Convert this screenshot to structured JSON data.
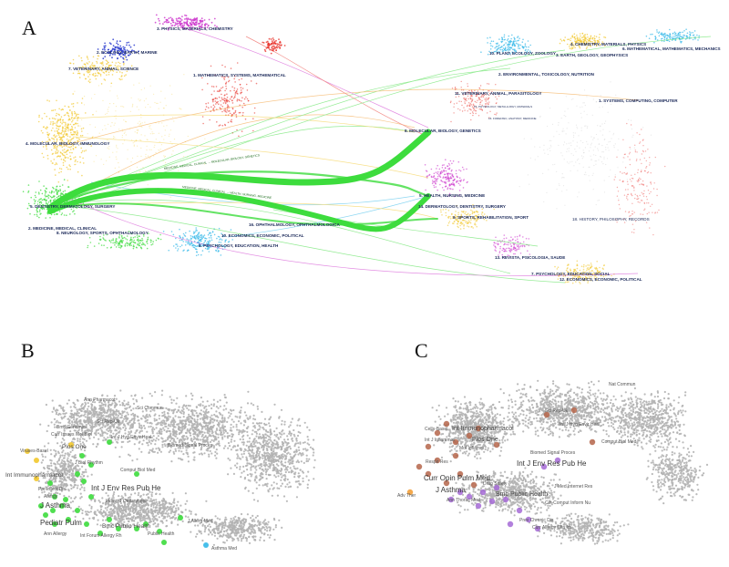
{
  "panels": {
    "a": {
      "letter": "A",
      "left_labels": [
        "3. PHYSICS, MATERIALS, CHEMISTRY",
        "2. ECOLOGY, EARTH, MARINE",
        "7. VETERINARY, ANIMAL, SCIENCE",
        "1. MATHEMATICS, SYSTEMS, MATHEMATICAL",
        "4. MOLECULAR, BIOLOGY, IMMUNOLOGY",
        "5. DENTISTRY, DERMATOLOGY, SURGERY",
        "2. MEDICINE, MEDICAL, CLINICAL",
        "8. NEUROLOGY, SPORTS, OPHTHALMOLOGY",
        "16. OPHTHALMOLOGY, OPHTHALMOLOGICA",
        "10. ECONOMICS, ECONOMIC, POLITICAL",
        "6. PSYCHOLOGY, EDUCATION, HEALTH"
      ],
      "right_labels": [
        "10. PLANT, ECOLOGY, ZOOLOGY",
        "4. CHEMISTRY, MATERIALS, PHYSICS",
        "6. MATHEMATICAL, MATHEMATICS, MECHANICS",
        "3. EARTH, GEOLOGY, GEOPHYSICS",
        "2. ENVIRONMENTAL, TOXICOLOGY, NUTRITION",
        "11. VETERINARY, ANIMAL, PARASITOLOGY",
        "1. SYSTEMS, COMPUTING, COMPUTER",
        "15. PHYSIOLOGY, METALLURGY, MATERIALS",
        "16. FORENSIC, ANATOMY, MEDICINE",
        "8. MOLECULAR, BIOLOGY, GENETICS",
        "5. HEALTH, NURSING, MEDICINE",
        "14. DERMATOLOGY, DENTISTRY, SURGERY",
        "9. SPORTS, REHABILITATION, SPORT",
        "18. HISTORY, PHILOSOPHY, RECORDS",
        "13. REVISTA, PSICOLOGIA, SAUDE",
        "7. PSYCHOLOGY, EDUCATION, SOCIAL",
        "12. ECONOMICS, ECONOMIC, POLITICAL"
      ],
      "arc_labels": [
        "MEDICINE, MEDICAL, CLINICAL → MOLECULAR, BIOLOGY, GENETICS",
        "MEDICINE, MEDICAL, CLINICAL → HEALTH, NURSING, MEDICINE"
      ]
    },
    "b": {
      "letter": "B",
      "labels": [
        "Ann Pharmacot",
        "Sci Commun",
        "Sci Rep-Uk",
        "Bmc Genomics",
        "Curr Issues Mol Biol",
        "Plos One",
        "Int J Hyg Envir Heal",
        "Biomed Signal Proces",
        "Viruses-Basel",
        "J Biol Rhythm",
        "Comput Biol Med",
        "Int Immunopharmacol",
        "Int J Env Res Pub He",
        "Pre Infect Dis",
        "Allergy",
        "J Asthma",
        "Indian J Otolaryngol",
        "Pediatr Pulm",
        "Bmc Public Health",
        "Ann Allergy",
        "Int Forum Allergy Rh",
        "Public Health",
        "J Allerg Med",
        "Asthma Med"
      ]
    },
    "c": {
      "letter": "C",
      "labels": [
        "Nat Commun",
        "Sci Rep-Uk",
        "Cells-Basel",
        "Int Immunopharmacol",
        "Int J Hyg Envir Heal",
        "Int J Inflammat",
        "Plos One",
        "Comput Biol Med",
        "Mol Inflamm",
        "Biomed Signal Proces",
        "Respir Res",
        "Int J Env Res Pub He",
        "Curr Opin Pulm Med",
        "Drug Safety",
        "J Med Internet Res",
        "J Asthma",
        "Bmc Public Health",
        "Adv Ther",
        "Ann Thorac Med",
        "Cin-Comput Inform Nu",
        "Prev Chronic Dis",
        "Curr Allergy Clin Im"
      ]
    }
  },
  "colors": {
    "green": "#3ddc3d",
    "red": "#e8332c",
    "yellow": "#f2c82e",
    "magenta": "#cc33cc",
    "blue": "#2233cc",
    "cyan": "#33b8e8",
    "orange": "#f29a2e",
    "purple": "#a46ad6",
    "brown": "#b5654a",
    "grey": "#bdbdbd"
  }
}
